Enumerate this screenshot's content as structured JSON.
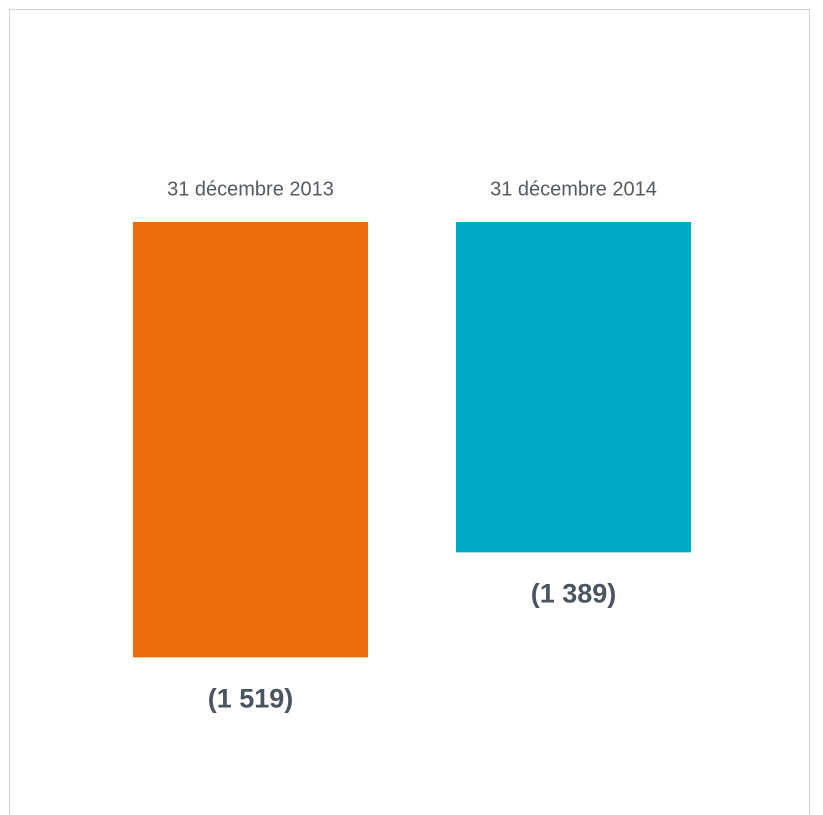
{
  "chart_data": {
    "type": "bar",
    "categories": [
      "31 décembre 2013",
      "31 décembre 2014"
    ],
    "values": [
      -1519,
      -1389
    ],
    "value_labels": [
      "(1 519)",
      "(1 389)"
    ],
    "colors": [
      "#ec6c0a",
      "#00aac4"
    ],
    "ylim": [
      -1700,
      -980
    ]
  }
}
